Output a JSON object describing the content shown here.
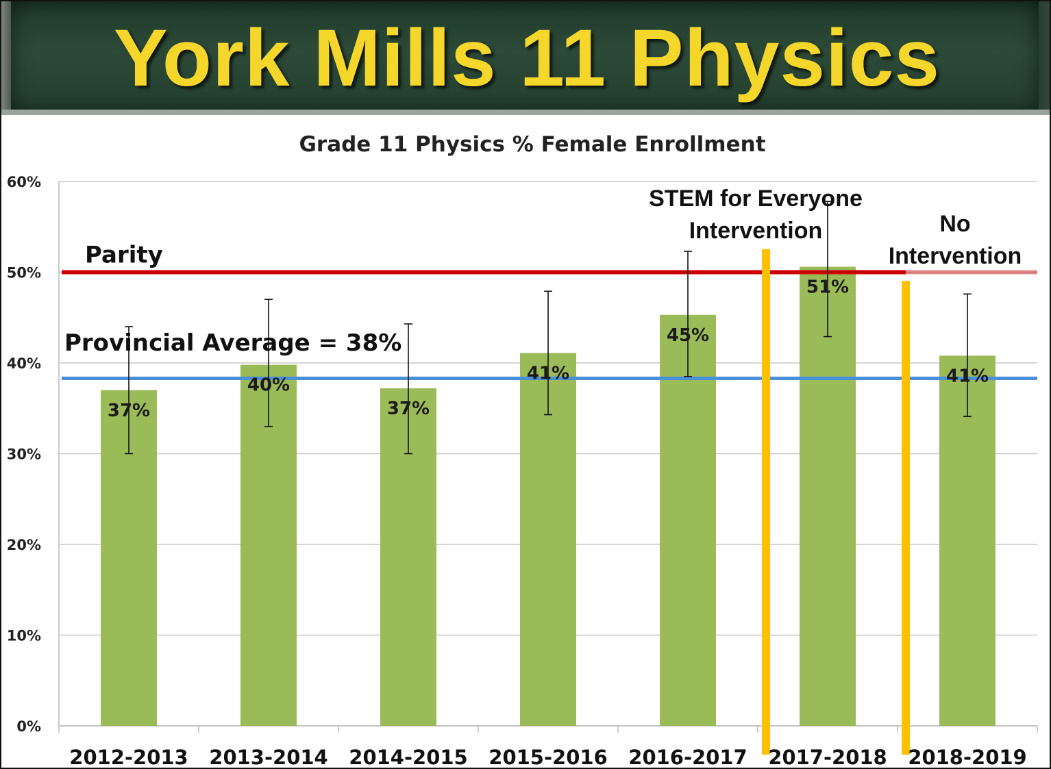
{
  "banner": {
    "title": "York Mills 11 Physics"
  },
  "colors": {
    "bar": "#9bbb59",
    "parity_line": "#cc0000",
    "provincial_line": "#4a90d9",
    "divider": "#ffc000",
    "banner_text": "#f5d62a",
    "banner_bg": "#2c4a37"
  },
  "chart_data": {
    "type": "bar",
    "title": "Grade 11 Physics % Female Enrollment",
    "xlabel": "",
    "ylabel": "",
    "ylim": [
      0,
      60
    ],
    "yticks": [
      "0%",
      "10%",
      "20%",
      "30%",
      "40%",
      "50%",
      "60%"
    ],
    "ytick_values": [
      0,
      10,
      20,
      30,
      40,
      50,
      60
    ],
    "grid": true,
    "categories": [
      "2012-2013",
      "2013-2014",
      "2014-2015",
      "2015-2016",
      "2016-2017",
      "2017-2018",
      "2018-2019"
    ],
    "values": [
      37,
      39.8,
      37.2,
      41.1,
      45.3,
      50.6,
      40.8
    ],
    "data_labels": [
      "37%",
      "40%",
      "37%",
      "41%",
      "45%",
      "51%",
      "41%"
    ],
    "error_bars": [
      {
        "low": 30,
        "high": 44
      },
      {
        "low": 33,
        "high": 47
      },
      {
        "low": 30,
        "high": 44.3
      },
      {
        "low": 34.3,
        "high": 47.9
      },
      {
        "low": 38.5,
        "high": 52.3
      },
      {
        "low": 42.9,
        "high": 57.8
      },
      {
        "low": 34.1,
        "high": 47.6
      }
    ],
    "reference_lines": [
      {
        "label": "Parity",
        "value": 50
      },
      {
        "label": "Provincial Average = 38%",
        "value": 38.3
      }
    ],
    "annotations": [
      {
        "text_lines": [
          "STEM for Everyone",
          "Intervention"
        ]
      },
      {
        "text_lines": [
          "No",
          "Intervention"
        ]
      }
    ]
  }
}
